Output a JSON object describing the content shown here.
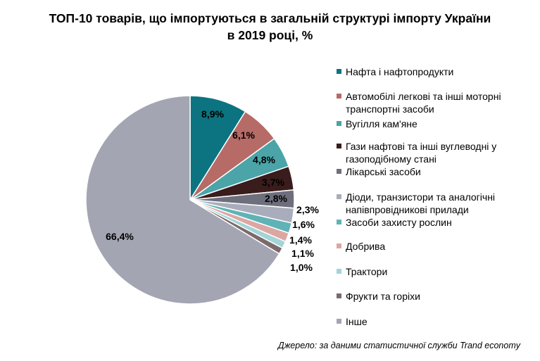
{
  "chart_data": {
    "type": "pie",
    "title_line1": "ТОП-10 товарів, що імпортуються в загальній структурі імпорту України",
    "title_line2": "в 2019 році, %",
    "slices": [
      {
        "label": "Нафта і нафтопродукти",
        "value": 8.9,
        "display": "8,9%",
        "color": "#0c7480"
      },
      {
        "label": "Автомобілі легкові та інші моторні транспортні засоби",
        "value": 6.1,
        "display": "6,1%",
        "color": "#b66b67"
      },
      {
        "label": "Вугілля кам'яне",
        "value": 4.8,
        "display": "4,8%",
        "color": "#4aa4a8"
      },
      {
        "label": "Гази нафтові та інші вуглеводні у газоподібному стані",
        "value": 3.7,
        "display": "3,7%",
        "color": "#3a1c1c"
      },
      {
        "label": "Лікарські засоби",
        "value": 2.8,
        "display": "2,8%",
        "color": "#6d6f7d"
      },
      {
        "label": "Діоди, транзистори та аналогічні напівпровідникові прилади",
        "value": 2.3,
        "display": "2,3%",
        "color": "#a9adbb"
      },
      {
        "label": "Засоби захисту рослин",
        "value": 1.6,
        "display": "1,6%",
        "color": "#5fb3b6"
      },
      {
        "label": "Добрива",
        "value": 1.4,
        "display": "1,4%",
        "color": "#dca7a3"
      },
      {
        "label": "Трактори",
        "value": 1.1,
        "display": "1,1%",
        "color": "#a2d4d8"
      },
      {
        "label": "Фрукти та горіхи",
        "value": 1.0,
        "display": "1,0%",
        "color": "#7c6a6a"
      },
      {
        "label": "Інше",
        "value": 66.4,
        "display": "66,4%",
        "color": "#a4a5b3"
      }
    ]
  },
  "source": "Джерело: за даними статистичної служби Trand economy"
}
